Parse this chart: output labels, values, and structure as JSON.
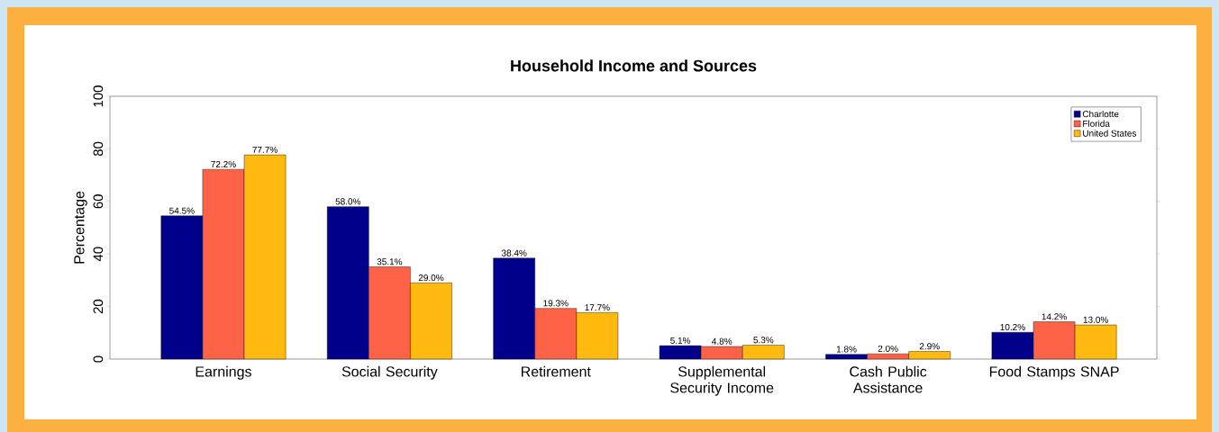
{
  "chart_data": {
    "type": "bar",
    "title": "Household Income and Sources",
    "ylabel": "Percentage",
    "categories": [
      "Earnings",
      "Social Security",
      "Retirement",
      "Supplemental Security Income",
      "Cash Public Assistance",
      "Food Stamps SNAP"
    ],
    "series": [
      {
        "name": "Charlotte",
        "color": "#00008b",
        "values": [
          54.5,
          58.0,
          38.4,
          5.1,
          1.8,
          10.2
        ],
        "value_labels": [
          "54.5%",
          "58.0%",
          "38.4%",
          "5.1%",
          "1.8%",
          "10.2%"
        ]
      },
      {
        "name": "Florida",
        "color": "#ff6347",
        "values": [
          72.2,
          35.1,
          19.3,
          4.8,
          2.0,
          14.2
        ],
        "value_labels": [
          "72.2%",
          "35.1%",
          "19.3%",
          "4.8%",
          "2.0%",
          "14.2%"
        ]
      },
      {
        "name": "United States",
        "color": "#ffb90f",
        "values": [
          77.7,
          29.0,
          17.7,
          5.3,
          2.9,
          13.0
        ],
        "value_labels": [
          "77.7%",
          "29.0%",
          "17.7%",
          "5.3%",
          "2.9%",
          "13.0%"
        ]
      }
    ],
    "ylim": [
      0,
      100
    ],
    "yticks": [
      0,
      20,
      40,
      60,
      80,
      100
    ],
    "grid": false,
    "legend": "top right"
  }
}
